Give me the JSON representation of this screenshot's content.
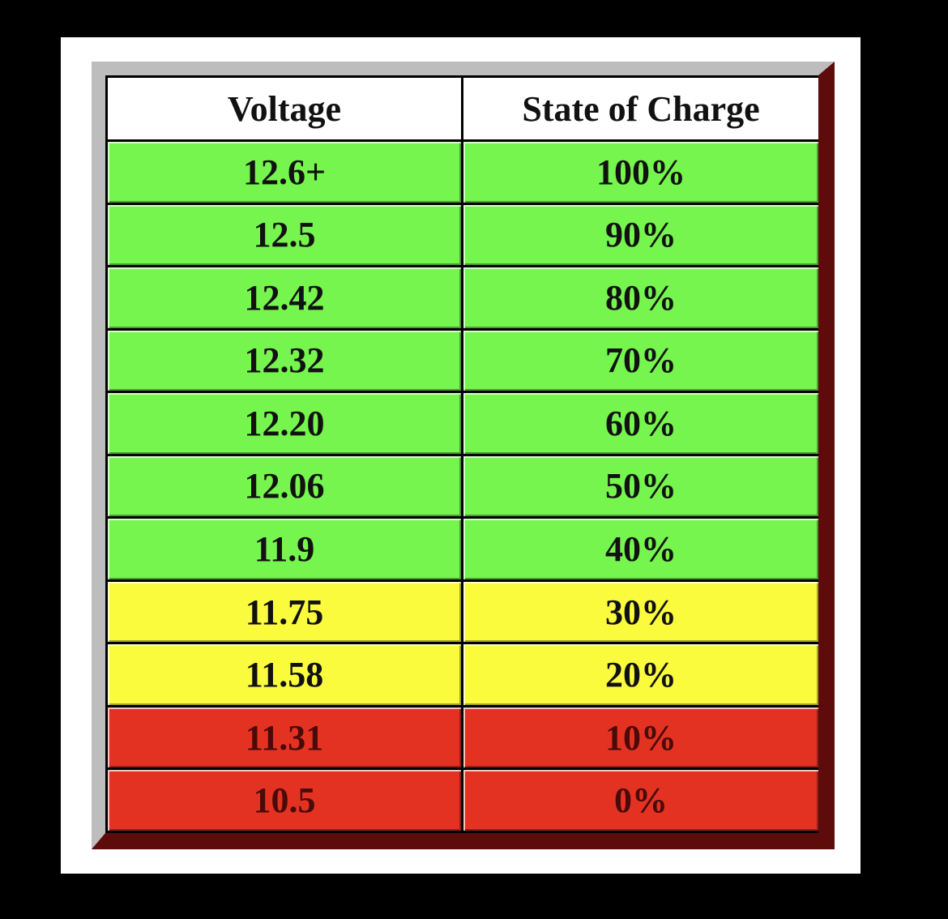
{
  "table": {
    "header": [
      "Voltage",
      "State of Charge"
    ],
    "rows": [
      [
        "12.6+",
        "100%"
      ],
      [
        "12.5",
        "90%"
      ],
      [
        "12.42",
        "80%"
      ],
      [
        "12.32",
        "70%"
      ],
      [
        "12.20",
        "60%"
      ],
      [
        "12.06",
        "50%"
      ],
      [
        "11.9",
        "40%"
      ],
      [
        "11.75",
        "30%"
      ],
      [
        "11.58",
        "20%"
      ],
      [
        "11.31",
        "10%"
      ],
      [
        "10.5",
        "0%"
      ]
    ]
  }
}
